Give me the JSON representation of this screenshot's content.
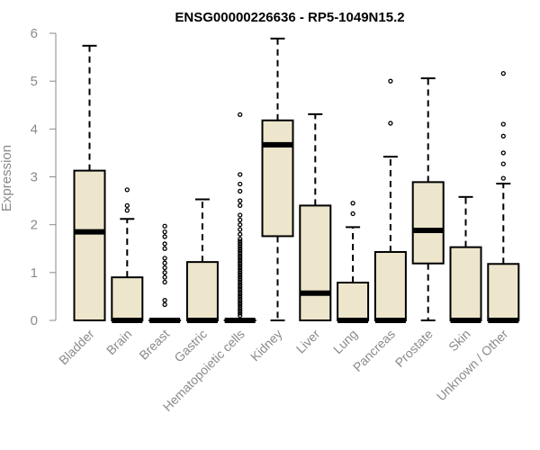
{
  "chart_data": {
    "type": "box",
    "title": "ENSG00000226636 - RP5-1049N15.2",
    "xlabel": "",
    "ylabel": "Expression",
    "ylim": [
      0,
      6
    ],
    "yticks": [
      0,
      1,
      2,
      3,
      4,
      5,
      6
    ],
    "box_fill": "#ede6cc",
    "categories": [
      "Bladder",
      "Brain",
      "Breast",
      "Gastric",
      "Hematopoietic cells",
      "Kidney",
      "Liver",
      "Lung",
      "Pancreas",
      "Prostate",
      "Skin",
      "Unknown / Other"
    ],
    "boxes": [
      {
        "min": 0,
        "q1": 0,
        "median": 1.85,
        "q3": 3.13,
        "max": 5.74,
        "outliers": []
      },
      {
        "min": 0,
        "q1": 0,
        "median": 0,
        "q3": 0.9,
        "max": 2.12,
        "outliers": [
          2.3,
          2.4,
          2.73
        ]
      },
      {
        "min": 0,
        "q1": 0,
        "median": 0,
        "q3": 0,
        "max": 0,
        "outliers": [
          0.33,
          0.42,
          0.8,
          0.9,
          1.0,
          1.1,
          1.2,
          1.3,
          1.5,
          1.6,
          1.75,
          1.85,
          1.97
        ]
      },
      {
        "min": 0,
        "q1": 0,
        "median": 0,
        "q3": 1.22,
        "max": 2.53,
        "outliers": []
      },
      {
        "min": 0,
        "q1": 0,
        "median": 0,
        "q3": 0,
        "max": 0,
        "outliers": [
          0.1,
          0.15,
          0.2,
          0.25,
          0.3,
          0.35,
          0.4,
          0.45,
          0.5,
          0.55,
          0.6,
          0.65,
          0.7,
          0.75,
          0.8,
          0.85,
          0.9,
          0.95,
          1.0,
          1.05,
          1.1,
          1.15,
          1.2,
          1.25,
          1.3,
          1.35,
          1.4,
          1.45,
          1.5,
          1.55,
          1.6,
          1.65,
          1.7,
          1.8,
          1.9,
          2.0,
          2.1,
          2.2,
          2.4,
          2.5,
          2.7,
          2.85,
          3.05,
          4.3
        ]
      },
      {
        "min": 0,
        "q1": 1.76,
        "median": 3.67,
        "q3": 4.18,
        "max": 5.89,
        "outliers": []
      },
      {
        "min": 0,
        "q1": 0,
        "median": 0.57,
        "q3": 2.4,
        "max": 4.31,
        "outliers": []
      },
      {
        "min": 0,
        "q1": 0,
        "median": 0,
        "q3": 0.79,
        "max": 1.95,
        "outliers": [
          2.23,
          2.45
        ]
      },
      {
        "min": 0,
        "q1": 0,
        "median": 0,
        "q3": 1.43,
        "max": 3.42,
        "outliers": [
          4.12,
          5.0
        ]
      },
      {
        "min": 0,
        "q1": 1.19,
        "median": 1.88,
        "q3": 2.89,
        "max": 5.06,
        "outliers": []
      },
      {
        "min": 0,
        "q1": 0,
        "median": 0,
        "q3": 1.53,
        "max": 2.58,
        "outliers": []
      },
      {
        "min": 0,
        "q1": 0,
        "median": 0,
        "q3": 1.18,
        "max": 2.86,
        "outliers": [
          2.97,
          3.27,
          3.5,
          3.85,
          4.1,
          5.16
        ]
      }
    ]
  }
}
